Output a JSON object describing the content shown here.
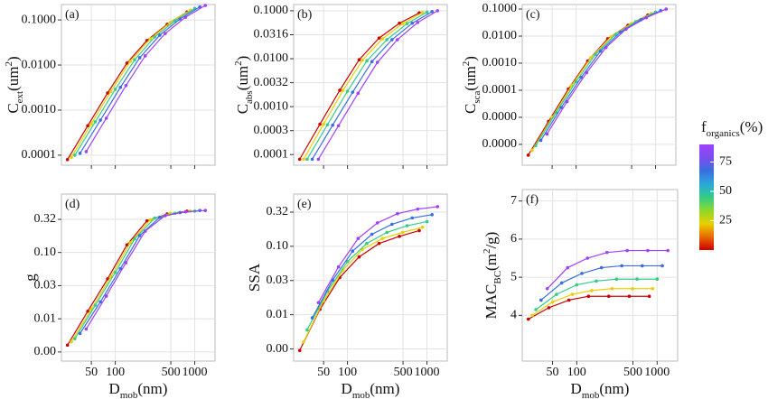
{
  "colorbar": {
    "title": [
      {
        "text": "f"
      },
      {
        "text": "organics",
        "shift": "sub"
      },
      {
        "text": "(%)"
      }
    ],
    "lim": [
      0,
      90
    ],
    "ticks": [
      25,
      50,
      75
    ],
    "colors": [
      "#cc0000",
      "#e86a00",
      "#e8d000",
      "#8ed82a",
      "#33cc88",
      "#2aa8d8",
      "#3a6ee0",
      "#7a4ef0",
      "#a040ff"
    ]
  },
  "chart_data": [
    {
      "type": "line",
      "panel_label": "(a)",
      "xlog": true,
      "ylog": true,
      "grid": true,
      "show_xtick_labels": false,
      "ylabel": [
        {
          "text": "C"
        },
        {
          "text": "ext",
          "shift": "sub"
        },
        {
          "text": "(um"
        },
        {
          "text": "2",
          "shift": "super"
        },
        {
          "text": ")"
        }
      ],
      "xlim": [
        21,
        1800
      ],
      "xticks": [
        50,
        100,
        500,
        1000
      ],
      "ylim": [
        6e-05,
        0.22
      ],
      "yticks": [
        0.0001,
        {
          "value": 0.001,
          "label": "0.0010"
        },
        {
          "value": 0.01,
          "label": "0.0100"
        },
        {
          "value": 0.1,
          "label": "0.1000"
        }
      ],
      "series": [
        {
          "color": "#cc0000",
          "x": [
            25,
            45,
            80,
            140,
            250,
            450,
            800
          ],
          "values": [
            8e-05,
            0.00045,
            0.0024,
            0.011,
            0.035,
            0.08,
            0.15
          ]
        },
        {
          "color": "#e8d000",
          "x": [
            28,
            50,
            88,
            154,
            275,
            495,
            880
          ],
          "values": [
            9e-05,
            0.0005,
            0.0026,
            0.012,
            0.038,
            0.088,
            0.165
          ]
        },
        {
          "color": "#33cc88",
          "x": [
            31,
            56,
            100,
            175,
            313,
            563,
            1000
          ],
          "values": [
            0.0001,
            0.00055,
            0.0029,
            0.013,
            0.042,
            0.096,
            0.18
          ]
        },
        {
          "color": "#3a6ee0",
          "x": [
            36,
            65,
            116,
            203,
            363,
            653,
            1160
          ],
          "values": [
            0.00011,
            0.0006,
            0.0032,
            0.0145,
            0.046,
            0.105,
            0.195
          ]
        },
        {
          "color": "#a040ff",
          "x": [
            43,
            77,
            136,
            238,
            425,
            765,
            1360
          ],
          "values": [
            0.00012,
            0.00066,
            0.0035,
            0.016,
            0.05,
            0.115,
            0.21
          ]
        }
      ]
    },
    {
      "type": "line",
      "panel_label": "(b)",
      "xlog": true,
      "ylog": true,
      "grid": true,
      "show_xtick_labels": false,
      "ylabel": [
        {
          "text": "C"
        },
        {
          "text": "abs",
          "shift": "sub"
        },
        {
          "text": "(um"
        },
        {
          "text": "2",
          "shift": "super"
        },
        {
          "text": ")"
        }
      ],
      "xlim": [
        21,
        1800
      ],
      "xticks": [
        50,
        100,
        500,
        1000
      ],
      "ylim": [
        6e-05,
        0.135
      ],
      "yticks": [
        0.0001,
        {
          "value": 0.000316,
          "label": "0.0003"
        },
        {
          "value": 0.001,
          "label": "0.0010"
        },
        {
          "value": 0.00316,
          "label": "0.0032"
        },
        {
          "value": 0.01,
          "label": "0.0100"
        },
        0.0316,
        {
          "value": 0.1,
          "label": "0.1000"
        }
      ],
      "series": [
        {
          "color": "#cc0000",
          "x": [
            25,
            45,
            80,
            140,
            250,
            450,
            800
          ],
          "values": [
            8e-05,
            0.00043,
            0.0022,
            0.0095,
            0.027,
            0.055,
            0.09
          ]
        },
        {
          "color": "#e8d000",
          "x": [
            28,
            50,
            88,
            154,
            275,
            495,
            880
          ],
          "values": [
            8e-05,
            0.00043,
            0.0022,
            0.0093,
            0.026,
            0.054,
            0.092
          ]
        },
        {
          "color": "#33cc88",
          "x": [
            31,
            56,
            100,
            175,
            313,
            563,
            1000
          ],
          "values": [
            8e-05,
            0.00042,
            0.0021,
            0.009,
            0.025,
            0.054,
            0.094
          ]
        },
        {
          "color": "#3a6ee0",
          "x": [
            36,
            65,
            116,
            203,
            363,
            653,
            1160
          ],
          "values": [
            8e-05,
            0.00041,
            0.002,
            0.0087,
            0.025,
            0.055,
            0.096
          ]
        },
        {
          "color": "#a040ff",
          "x": [
            43,
            77,
            136,
            238,
            425,
            765,
            1360
          ],
          "values": [
            8e-05,
            0.0004,
            0.0019,
            0.0084,
            0.025,
            0.057,
            0.1
          ]
        }
      ]
    },
    {
      "type": "line",
      "panel_label": "(c)",
      "xlog": true,
      "ylog": true,
      "grid": true,
      "show_xtick_labels": false,
      "ylabel": [
        {
          "text": "C"
        },
        {
          "text": "sca",
          "shift": "sub"
        },
        {
          "text": "(um"
        },
        {
          "text": "2",
          "shift": "super"
        },
        {
          "text": ")"
        }
      ],
      "xlim": [
        21,
        1800
      ],
      "xticks": [
        50,
        100,
        500,
        1000
      ],
      "ylim": [
        1.7e-07,
        0.147
      ],
      "yticks": [
        {
          "value": 1e-06,
          "label": "0.0000"
        },
        {
          "value": 1e-05,
          "label": "0.0000"
        },
        0.0001,
        {
          "value": 0.001,
          "label": "0.0010"
        },
        {
          "value": 0.01,
          "label": "0.0100"
        },
        {
          "value": 0.1,
          "label": "0.1000"
        }
      ],
      "series": [
        {
          "color": "#cc0000",
          "x": [
            25,
            45,
            80,
            140,
            250,
            450,
            800
          ],
          "values": [
            4e-07,
            7e-06,
            0.00011,
            0.0012,
            0.008,
            0.025,
            0.06
          ]
        },
        {
          "color": "#e8d000",
          "x": [
            28,
            50,
            88,
            154,
            275,
            495,
            880
          ],
          "values": [
            6e-07,
            1e-05,
            0.00015,
            0.0016,
            0.0095,
            0.029,
            0.068
          ]
        },
        {
          "color": "#33cc88",
          "x": [
            31,
            56,
            100,
            175,
            313,
            563,
            1000
          ],
          "values": [
            9e-07,
            1.5e-05,
            0.00021,
            0.0021,
            0.0115,
            0.034,
            0.077
          ]
        },
        {
          "color": "#3a6ee0",
          "x": [
            36,
            65,
            116,
            203,
            363,
            653,
            1160
          ],
          "values": [
            1.4e-06,
            2.3e-05,
            0.0003,
            0.0028,
            0.014,
            0.04,
            0.087
          ]
        },
        {
          "color": "#a040ff",
          "x": [
            43,
            77,
            136,
            238,
            425,
            765,
            1360
          ],
          "values": [
            2.4e-06,
            3.8e-05,
            0.00045,
            0.0038,
            0.018,
            0.048,
            0.1
          ]
        }
      ]
    },
    {
      "type": "line",
      "panel_label": "(d)",
      "xlog": true,
      "ylog": true,
      "grid": true,
      "show_xtick_labels": true,
      "ylabel": [
        {
          "text": "g"
        }
      ],
      "xlabel": [
        {
          "text": "D"
        },
        {
          "text": "mob",
          "shift": "sub"
        },
        {
          "text": "(nm)"
        }
      ],
      "xlim": [
        21,
        1800
      ],
      "xticks": [
        50,
        100,
        500,
        1000
      ],
      "ylim": [
        0.0023,
        0.76
      ],
      "yticks": [
        {
          "value": 0.00316,
          "label": "0.00"
        },
        0.01,
        {
          "value": 0.0316,
          "label": "0.03"
        },
        {
          "value": 0.1,
          "label": "0.10"
        },
        {
          "value": 0.316,
          "label": "0.32"
        }
      ],
      "series": [
        {
          "color": "#cc0000",
          "x": [
            25,
            45,
            80,
            140,
            250,
            450,
            800
          ],
          "values": [
            0.004,
            0.013,
            0.04,
            0.13,
            0.3,
            0.38,
            0.42
          ]
        },
        {
          "color": "#e8d000",
          "x": [
            28,
            50,
            88,
            154,
            275,
            495,
            880
          ],
          "values": [
            0.0045,
            0.014,
            0.043,
            0.14,
            0.31,
            0.39,
            0.42
          ]
        },
        {
          "color": "#33cc88",
          "x": [
            31,
            56,
            100,
            175,
            313,
            563,
            1000
          ],
          "values": [
            0.005,
            0.016,
            0.05,
            0.16,
            0.33,
            0.39,
            0.42
          ]
        },
        {
          "color": "#3a6ee0",
          "x": [
            36,
            65,
            116,
            203,
            363,
            653,
            1160
          ],
          "values": [
            0.006,
            0.018,
            0.057,
            0.18,
            0.34,
            0.4,
            0.43
          ]
        },
        {
          "color": "#a040ff",
          "x": [
            43,
            77,
            136,
            238,
            425,
            765,
            1360
          ],
          "values": [
            0.007,
            0.022,
            0.07,
            0.21,
            0.36,
            0.41,
            0.43
          ]
        }
      ]
    },
    {
      "type": "line",
      "panel_label": "(e)",
      "xlog": true,
      "ylog": true,
      "grid": true,
      "show_xtick_labels": true,
      "ylabel": [
        {
          "text": "SSA"
        }
      ],
      "xlabel": [
        {
          "text": "D"
        },
        {
          "text": "mob",
          "shift": "sub"
        },
        {
          "text": "(nm)"
        }
      ],
      "xlim": [
        21,
        1800
      ],
      "xticks": [
        50,
        100,
        500,
        1000
      ],
      "ylim": [
        0.0021,
        0.58
      ],
      "yticks": [
        {
          "value": 0.00316,
          "label": "0.00"
        },
        0.01,
        {
          "value": 0.0316,
          "label": "0.03"
        },
        {
          "value": 0.1,
          "label": "0.10"
        },
        {
          "value": 0.316,
          "label": "0.32"
        }
      ],
      "series": [
        {
          "color": "#cc0000",
          "x": [
            25,
            45,
            80,
            140,
            250,
            450,
            800
          ],
          "values": [
            0.003,
            0.012,
            0.035,
            0.07,
            0.11,
            0.14,
            0.17
          ]
        },
        {
          "color": "#e8d000",
          "x": [
            28,
            50,
            88,
            154,
            275,
            495,
            880
          ],
          "values": [
            0.004,
            0.016,
            0.045,
            0.09,
            0.13,
            0.16,
            0.19
          ]
        },
        {
          "color": "#33cc88",
          "x": [
            31,
            56,
            100,
            175,
            313,
            563,
            1000
          ],
          "values": [
            0.006,
            0.022,
            0.06,
            0.11,
            0.16,
            0.2,
            0.23
          ]
        },
        {
          "color": "#3a6ee0",
          "x": [
            36,
            65,
            116,
            203,
            363,
            653,
            1160
          ],
          "values": [
            0.009,
            0.032,
            0.085,
            0.15,
            0.21,
            0.26,
            0.29
          ]
        },
        {
          "color": "#a040ff",
          "x": [
            43,
            77,
            136,
            238,
            425,
            765,
            1360
          ],
          "values": [
            0.015,
            0.05,
            0.13,
            0.22,
            0.3,
            0.35,
            0.38
          ]
        }
      ]
    },
    {
      "type": "line",
      "panel_label": "(f)",
      "xlog": true,
      "ylog": false,
      "grid": true,
      "show_xtick_labels": true,
      "ylabel": [
        {
          "text": "MAC"
        },
        {
          "text": "BC",
          "shift": "sub"
        },
        {
          "text": "(m"
        },
        {
          "text": "2",
          "shift": "super"
        },
        {
          "text": "/g)"
        }
      ],
      "xlabel": [
        {
          "text": "D"
        },
        {
          "text": "mob",
          "shift": "sub"
        },
        {
          "text": "(nm)"
        }
      ],
      "xlim": [
        21,
        1800
      ],
      "xticks": [
        50,
        100,
        500,
        1000
      ],
      "ylim": [
        2.8,
        7.3
      ],
      "yticks": [
        4,
        5,
        6,
        7
      ],
      "series": [
        {
          "color": "#cc0000",
          "x": [
            25,
            45,
            80,
            140,
            250,
            450,
            800
          ],
          "values": [
            3.9,
            4.2,
            4.4,
            4.5,
            4.5,
            4.5,
            4.5
          ]
        },
        {
          "color": "#e8d000",
          "x": [
            28,
            50,
            88,
            154,
            275,
            495,
            880
          ],
          "values": [
            4.0,
            4.35,
            4.55,
            4.65,
            4.7,
            4.7,
            4.7
          ]
        },
        {
          "color": "#33cc88",
          "x": [
            31,
            56,
            100,
            175,
            313,
            563,
            1000
          ],
          "values": [
            4.15,
            4.55,
            4.8,
            4.9,
            4.95,
            4.95,
            4.95
          ]
        },
        {
          "color": "#3a6ee0",
          "x": [
            36,
            65,
            116,
            203,
            363,
            653,
            1160
          ],
          "values": [
            4.4,
            4.85,
            5.1,
            5.25,
            5.3,
            5.3,
            5.3
          ]
        },
        {
          "color": "#a040ff",
          "x": [
            43,
            77,
            136,
            238,
            425,
            765,
            1360
          ],
          "values": [
            4.7,
            5.25,
            5.5,
            5.65,
            5.7,
            5.7,
            5.7
          ]
        }
      ]
    }
  ]
}
